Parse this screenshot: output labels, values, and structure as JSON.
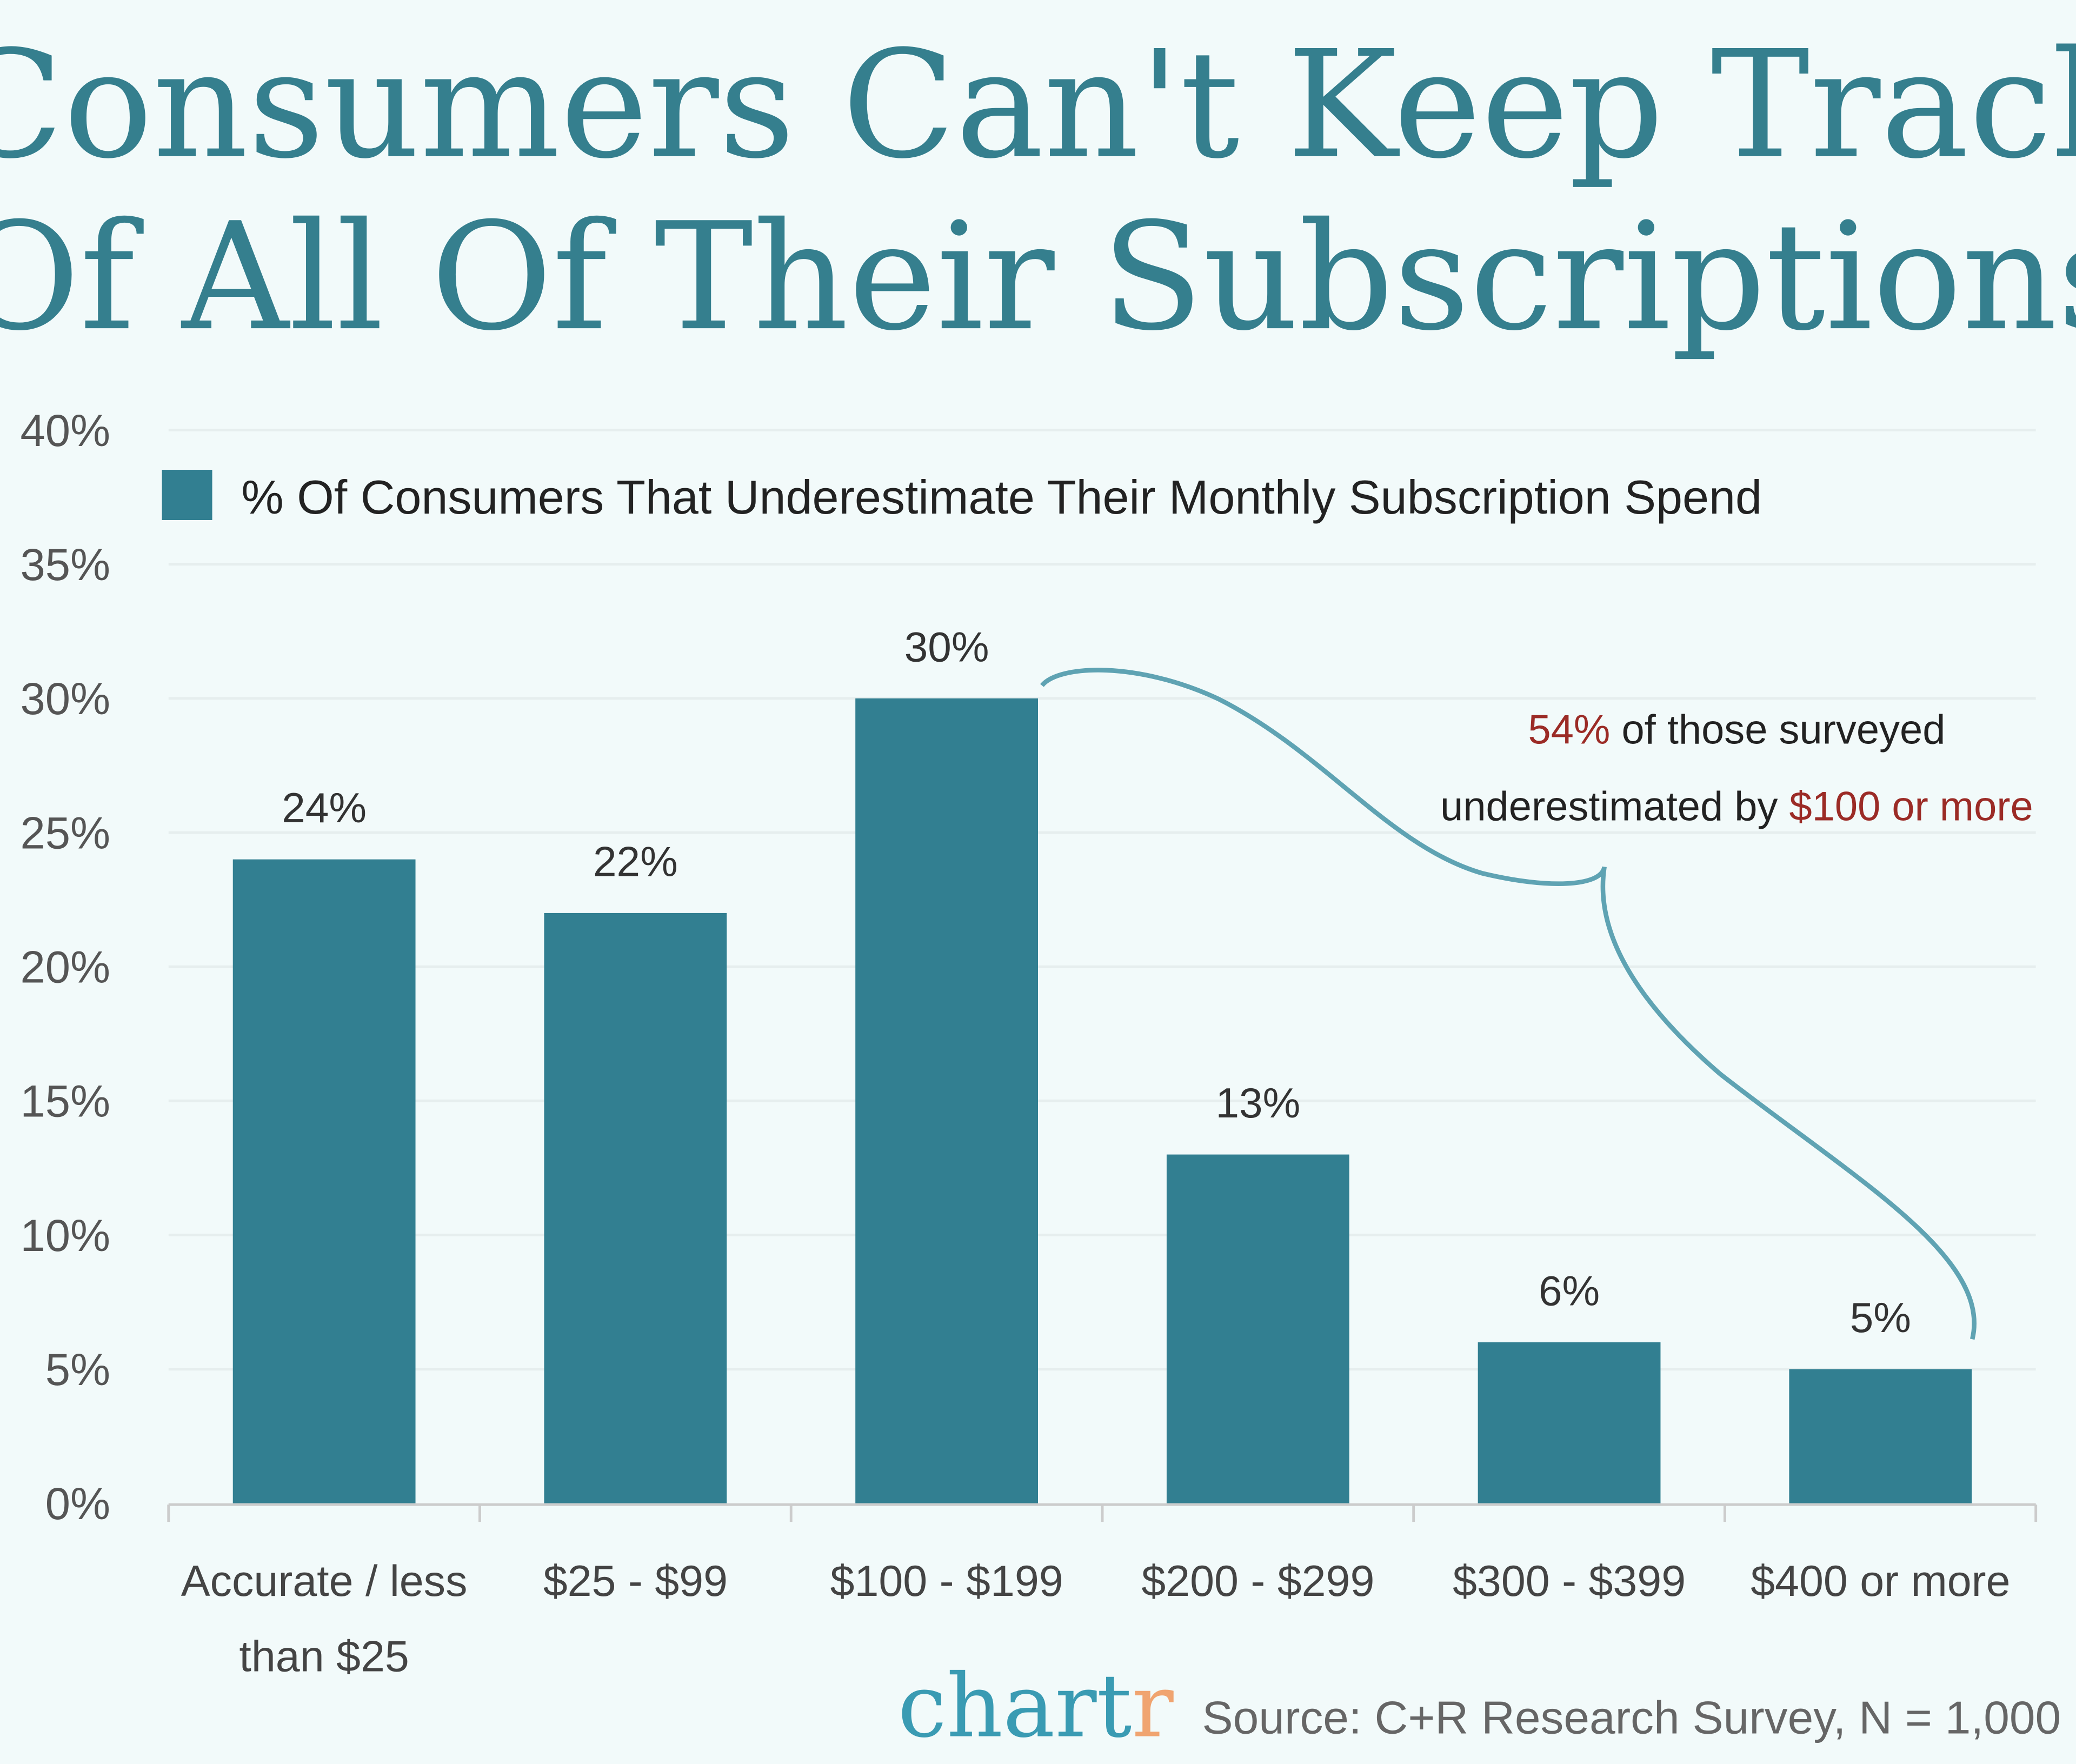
{
  "chart_data": {
    "type": "bar",
    "title": [
      "Consumers Can't Keep Track",
      "Of All Of Their Subscriptions"
    ],
    "categories": [
      [
        "Accurate / less",
        "than $25"
      ],
      [
        "$25 - $99"
      ],
      [
        "$100 - $199"
      ],
      [
        "$200 - $299"
      ],
      [
        "$300 - $399"
      ],
      [
        "$400 or more"
      ]
    ],
    "series": [
      {
        "name": "% Of Consumers That Underestimate Their Monthly Subscription Spend",
        "values": [
          24,
          22,
          30,
          13,
          6,
          5
        ]
      }
    ],
    "data_labels": [
      "24%",
      "22%",
      "30%",
      "13%",
      "6%",
      "5%"
    ],
    "ylim": [
      0,
      40
    ],
    "yticks": [
      0,
      5,
      10,
      15,
      20,
      25,
      30,
      35,
      40
    ],
    "ytick_labels": [
      "0%",
      "5%",
      "10%",
      "15%",
      "20%",
      "25%",
      "30%",
      "35%",
      "40%"
    ],
    "grid": true,
    "legend": "top-left",
    "colors": {
      "bar": "#327f91",
      "title": "#357f8e",
      "highlight": "#9b2b26",
      "brace": "#5fa3b3"
    },
    "annotation": {
      "line1_highlight": "54%",
      "line1_rest": " of those surveyed",
      "line2_start": "underestimated by ",
      "line2_highlight": "$100 or more"
    }
  },
  "footer": {
    "logo_main": "chart",
    "logo_end": "r",
    "source": "Source: C+R Research Survey, N = 1,000"
  }
}
